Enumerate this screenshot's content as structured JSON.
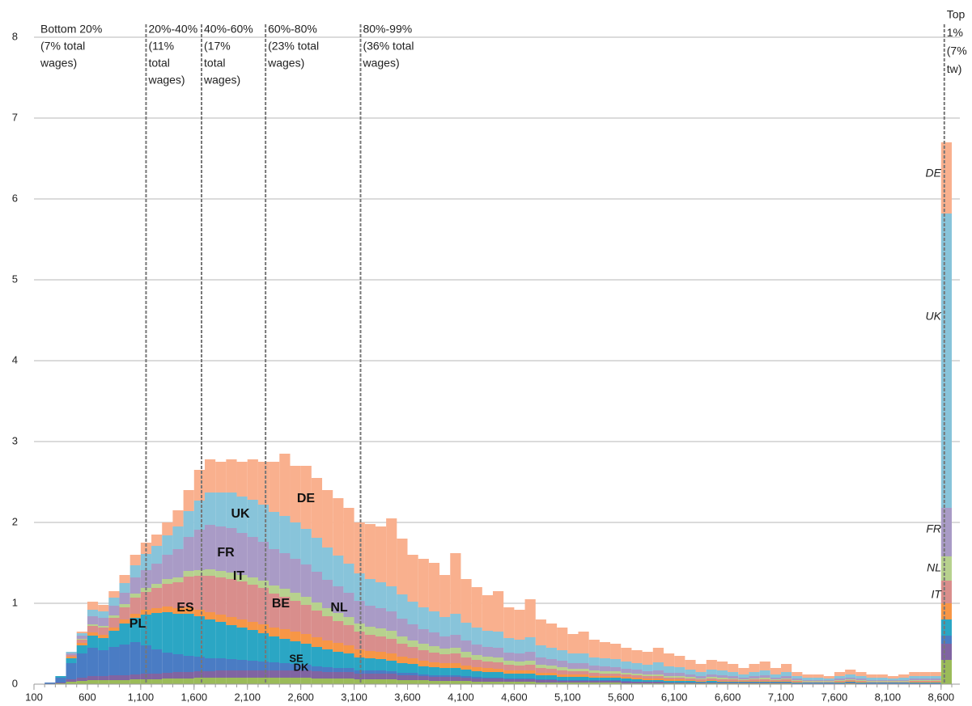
{
  "chart_data": {
    "type": "stacked_histogram",
    "bins": [
      100,
      200,
      300,
      400,
      500,
      600,
      700,
      800,
      900,
      1000,
      1100,
      1200,
      1300,
      1400,
      1500,
      1600,
      1700,
      1800,
      1900,
      2000,
      2100,
      2200,
      2300,
      2400,
      2500,
      2600,
      2700,
      2800,
      2900,
      3000,
      3100,
      3200,
      3300,
      3400,
      3500,
      3600,
      3700,
      3800,
      3900,
      4000,
      4100,
      4200,
      4300,
      4400,
      4500,
      4600,
      4700,
      4800,
      4900,
      5000,
      5100,
      5200,
      5300,
      5400,
      5500,
      5600,
      5700,
      5800,
      5900,
      6000,
      6100,
      6200,
      6300,
      6400,
      6500,
      6600,
      6700,
      6800,
      6900,
      7000,
      7100,
      7200,
      7300,
      7400,
      7500,
      7600,
      7700,
      7800,
      7900,
      8000,
      8100,
      8200,
      8300,
      8400,
      8500,
      8600,
      8700
    ],
    "series": [
      {
        "name": "DK",
        "color": "#9bbb59",
        "values": [
          0,
          0,
          0.01,
          0.03,
          0.04,
          0.05,
          0.05,
          0.05,
          0.05,
          0.06,
          0.06,
          0.06,
          0.07,
          0.07,
          0.07,
          0.08,
          0.08,
          0.08,
          0.08,
          0.08,
          0.08,
          0.08,
          0.08,
          0.08,
          0.08,
          0.08,
          0.07,
          0.07,
          0.07,
          0.07,
          0.06,
          0.06,
          0.06,
          0.06,
          0.05,
          0.05,
          0.05,
          0.04,
          0.04,
          0.04,
          0.04,
          0.03,
          0.03,
          0.03,
          0.03,
          0.03,
          0.03,
          0.02,
          0.02,
          0.02,
          0.02,
          0.02,
          0.02,
          0.02,
          0.02,
          0.01,
          0.01,
          0.01,
          0.01,
          0.01,
          0.01,
          0.01,
          0.01,
          0.01,
          0.01,
          0.01,
          0.01,
          0.01,
          0.01,
          0.01,
          0.01,
          0,
          0,
          0,
          0,
          0,
          0.01,
          0,
          0,
          0,
          0,
          0,
          0,
          0,
          0,
          0.3
        ]
      },
      {
        "name": "SE",
        "color": "#8064a2",
        "values": [
          0,
          0,
          0.01,
          0.03,
          0.04,
          0.05,
          0.05,
          0.06,
          0.06,
          0.06,
          0.07,
          0.07,
          0.07,
          0.08,
          0.08,
          0.08,
          0.08,
          0.09,
          0.09,
          0.09,
          0.09,
          0.09,
          0.09,
          0.09,
          0.09,
          0.09,
          0.09,
          0.08,
          0.08,
          0.08,
          0.07,
          0.07,
          0.07,
          0.07,
          0.06,
          0.06,
          0.05,
          0.05,
          0.05,
          0.05,
          0.04,
          0.04,
          0.04,
          0.04,
          0.03,
          0.03,
          0.03,
          0.03,
          0.03,
          0.02,
          0.02,
          0.02,
          0.02,
          0.02,
          0.02,
          0.02,
          0.02,
          0.02,
          0.02,
          0.01,
          0.01,
          0.01,
          0.01,
          0.01,
          0.01,
          0.01,
          0.01,
          0.01,
          0.01,
          0.01,
          0.01,
          0.01,
          0.01,
          0.01,
          0.01,
          0.01,
          0.01,
          0.01,
          0.01,
          0.01,
          0.01,
          0.01,
          0.01,
          0.01,
          0.01,
          0.2
        ]
      },
      {
        "name": "PL",
        "color": "#4a7cc4",
        "values": [
          0,
          0.02,
          0.06,
          0.2,
          0.3,
          0.35,
          0.32,
          0.35,
          0.38,
          0.4,
          0.35,
          0.3,
          0.25,
          0.22,
          0.2,
          0.18,
          0.16,
          0.15,
          0.14,
          0.13,
          0.12,
          0.11,
          0.1,
          0.09,
          0.08,
          0.07,
          0.06,
          0.06,
          0.05,
          0.05,
          0.04,
          0.04,
          0.04,
          0.03,
          0.03,
          0.03,
          0.02,
          0.02,
          0.02,
          0.02,
          0.02,
          0.02,
          0.01,
          0.01,
          0.01,
          0.01,
          0.01,
          0.01,
          0.01,
          0.01,
          0.01,
          0.01,
          0.01,
          0.01,
          0.01,
          0.01,
          0,
          0,
          0,
          0,
          0,
          0,
          0,
          0,
          0,
          0,
          0,
          0,
          0,
          0,
          0,
          0,
          0,
          0,
          0,
          0,
          0,
          0,
          0,
          0,
          0,
          0,
          0,
          0,
          0,
          0.1
        ]
      },
      {
        "name": "ES",
        "color": "#2ba6c4",
        "values": [
          0,
          0,
          0.02,
          0.06,
          0.1,
          0.15,
          0.15,
          0.2,
          0.26,
          0.3,
          0.38,
          0.45,
          0.5,
          0.5,
          0.52,
          0.5,
          0.48,
          0.45,
          0.42,
          0.4,
          0.38,
          0.35,
          0.32,
          0.3,
          0.28,
          0.26,
          0.24,
          0.22,
          0.2,
          0.18,
          0.16,
          0.15,
          0.14,
          0.13,
          0.12,
          0.11,
          0.1,
          0.1,
          0.09,
          0.09,
          0.08,
          0.07,
          0.07,
          0.07,
          0.06,
          0.06,
          0.06,
          0.05,
          0.05,
          0.04,
          0.04,
          0.04,
          0.03,
          0.03,
          0.03,
          0.03,
          0.03,
          0.02,
          0.02,
          0.02,
          0.02,
          0.02,
          0.01,
          0.02,
          0.01,
          0.01,
          0.01,
          0.01,
          0.01,
          0.01,
          0.01,
          0.01,
          0.01,
          0.01,
          0.01,
          0.01,
          0.01,
          0.01,
          0.01,
          0.01,
          0.01,
          0.01,
          0.01,
          0.01,
          0.01,
          0.2
        ]
      },
      {
        "name": "BE",
        "color": "#f79646",
        "values": [
          0,
          0,
          0,
          0.02,
          0.03,
          0.04,
          0.04,
          0.04,
          0.05,
          0.05,
          0.06,
          0.06,
          0.07,
          0.07,
          0.08,
          0.08,
          0.09,
          0.09,
          0.1,
          0.1,
          0.1,
          0.11,
          0.11,
          0.12,
          0.12,
          0.12,
          0.12,
          0.11,
          0.11,
          0.1,
          0.1,
          0.09,
          0.09,
          0.09,
          0.08,
          0.07,
          0.07,
          0.06,
          0.06,
          0.06,
          0.05,
          0.05,
          0.05,
          0.04,
          0.04,
          0.04,
          0.04,
          0.03,
          0.03,
          0.03,
          0.03,
          0.03,
          0.02,
          0.02,
          0.02,
          0.02,
          0.02,
          0.02,
          0.02,
          0.02,
          0.02,
          0.01,
          0.01,
          0.01,
          0.01,
          0.01,
          0.01,
          0.01,
          0.01,
          0.01,
          0.01,
          0.01,
          0,
          0,
          0,
          0.01,
          0.01,
          0.01,
          0,
          0,
          0,
          0,
          0.01,
          0.01,
          0.01,
          0.2
        ]
      },
      {
        "name": "IT",
        "color": "#d98e8c",
        "values": [
          0,
          0,
          0,
          0.02,
          0.04,
          0.08,
          0.09,
          0.12,
          0.15,
          0.2,
          0.22,
          0.25,
          0.28,
          0.32,
          0.38,
          0.42,
          0.45,
          0.46,
          0.47,
          0.47,
          0.46,
          0.45,
          0.42,
          0.4,
          0.38,
          0.36,
          0.33,
          0.3,
          0.27,
          0.25,
          0.22,
          0.2,
          0.19,
          0.18,
          0.16,
          0.14,
          0.13,
          0.12,
          0.11,
          0.12,
          0.1,
          0.09,
          0.08,
          0.08,
          0.07,
          0.06,
          0.07,
          0.06,
          0.05,
          0.05,
          0.04,
          0.04,
          0.04,
          0.03,
          0.03,
          0.03,
          0.03,
          0.03,
          0.03,
          0.02,
          0.02,
          0.02,
          0.02,
          0.02,
          0.02,
          0.02,
          0.01,
          0.02,
          0.02,
          0.01,
          0.02,
          0.01,
          0.01,
          0.01,
          0.01,
          0.01,
          0.01,
          0.01,
          0.01,
          0.01,
          0.01,
          0.01,
          0.01,
          0.01,
          0.01,
          0.28
        ]
      },
      {
        "name": "NL",
        "color": "#b7d18e",
        "values": [
          0,
          0,
          0,
          0,
          0.01,
          0.02,
          0.02,
          0.03,
          0.04,
          0.05,
          0.05,
          0.05,
          0.06,
          0.06,
          0.07,
          0.07,
          0.08,
          0.08,
          0.08,
          0.08,
          0.09,
          0.09,
          0.1,
          0.1,
          0.1,
          0.1,
          0.1,
          0.1,
          0.1,
          0.1,
          0.1,
          0.1,
          0.1,
          0.1,
          0.09,
          0.08,
          0.08,
          0.08,
          0.07,
          0.07,
          0.07,
          0.06,
          0.06,
          0.06,
          0.05,
          0.05,
          0.05,
          0.04,
          0.04,
          0.04,
          0.03,
          0.03,
          0.03,
          0.03,
          0.03,
          0.02,
          0.02,
          0.02,
          0.02,
          0.02,
          0.02,
          0.02,
          0.01,
          0.02,
          0.02,
          0.01,
          0.01,
          0.01,
          0.02,
          0.01,
          0.01,
          0.01,
          0.01,
          0.01,
          0.01,
          0.01,
          0.01,
          0.01,
          0.01,
          0.01,
          0.01,
          0.01,
          0.01,
          0.01,
          0.01,
          0.3
        ]
      },
      {
        "name": "FR",
        "color": "#a99bc6",
        "values": [
          0,
          0,
          0,
          0.02,
          0.04,
          0.1,
          0.1,
          0.12,
          0.14,
          0.2,
          0.22,
          0.25,
          0.3,
          0.35,
          0.42,
          0.5,
          0.55,
          0.55,
          0.55,
          0.52,
          0.5,
          0.48,
          0.45,
          0.44,
          0.42,
          0.4,
          0.38,
          0.35,
          0.33,
          0.3,
          0.28,
          0.26,
          0.25,
          0.24,
          0.22,
          0.2,
          0.18,
          0.17,
          0.15,
          0.16,
          0.14,
          0.13,
          0.12,
          0.12,
          0.1,
          0.1,
          0.11,
          0.09,
          0.08,
          0.08,
          0.07,
          0.07,
          0.06,
          0.06,
          0.05,
          0.05,
          0.05,
          0.04,
          0.05,
          0.04,
          0.04,
          0.03,
          0.03,
          0.03,
          0.03,
          0.03,
          0.02,
          0.03,
          0.03,
          0.02,
          0.03,
          0.02,
          0.01,
          0.01,
          0.01,
          0.02,
          0.02,
          0.02,
          0.01,
          0.01,
          0.01,
          0.01,
          0.02,
          0.02,
          0.02,
          0.6
        ]
      },
      {
        "name": "UK",
        "color": "#88c4da",
        "values": [
          0,
          0,
          0,
          0.02,
          0.03,
          0.08,
          0.08,
          0.1,
          0.12,
          0.15,
          0.2,
          0.22,
          0.24,
          0.28,
          0.32,
          0.36,
          0.4,
          0.42,
          0.44,
          0.45,
          0.46,
          0.46,
          0.46,
          0.46,
          0.45,
          0.44,
          0.42,
          0.4,
          0.38,
          0.36,
          0.34,
          0.33,
          0.32,
          0.31,
          0.3,
          0.28,
          0.27,
          0.26,
          0.24,
          0.26,
          0.22,
          0.21,
          0.2,
          0.2,
          0.18,
          0.17,
          0.18,
          0.15,
          0.14,
          0.13,
          0.12,
          0.12,
          0.1,
          0.1,
          0.1,
          0.09,
          0.08,
          0.08,
          0.1,
          0.08,
          0.07,
          0.06,
          0.05,
          0.06,
          0.06,
          0.05,
          0.04,
          0.05,
          0.06,
          0.04,
          0.05,
          0.03,
          0.03,
          0.03,
          0.02,
          0.03,
          0.04,
          0.03,
          0.03,
          0.03,
          0.02,
          0.03,
          0.03,
          0.03,
          0.03,
          3.64
        ]
      },
      {
        "name": "DE",
        "color": "#f9b08e",
        "values": [
          0,
          0,
          0,
          0,
          0.02,
          0.1,
          0.08,
          0.08,
          0.1,
          0.13,
          0.14,
          0.14,
          0.16,
          0.2,
          0.26,
          0.38,
          0.41,
          0.38,
          0.41,
          0.43,
          0.5,
          0.53,
          0.62,
          0.77,
          0.7,
          0.78,
          0.74,
          0.71,
          0.71,
          0.69,
          0.63,
          0.68,
          0.69,
          0.84,
          0.69,
          0.58,
          0.6,
          0.6,
          0.52,
          0.75,
          0.54,
          0.5,
          0.44,
          0.5,
          0.38,
          0.37,
          0.47,
          0.32,
          0.3,
          0.28,
          0.24,
          0.27,
          0.22,
          0.2,
          0.19,
          0.17,
          0.16,
          0.16,
          0.18,
          0.16,
          0.14,
          0.12,
          0.1,
          0.12,
          0.11,
          0.1,
          0.08,
          0.1,
          0.11,
          0.08,
          0.1,
          0.05,
          0.04,
          0.04,
          0.03,
          0.05,
          0.06,
          0.05,
          0.04,
          0.04,
          0.03,
          0.04,
          0.05,
          0.05,
          0.05,
          0.88
        ]
      }
    ],
    "xlim": [
      100,
      8700
    ],
    "xticks": [
      100,
      600,
      {
        "value": 1100,
        "label": "1,100"
      },
      {
        "value": 1600,
        "label": "1,600"
      },
      {
        "value": 2100,
        "label": "2,100"
      },
      {
        "value": 2600,
        "label": "2,600"
      },
      {
        "value": 3100,
        "label": "3,100"
      },
      {
        "value": 3600,
        "label": "3,600"
      },
      {
        "value": 4100,
        "label": "4,100"
      },
      {
        "value": 4600,
        "label": "4,600"
      },
      {
        "value": 5100,
        "label": "5,100"
      },
      {
        "value": 5600,
        "label": "5,600"
      },
      {
        "value": 6100,
        "label": "6,100"
      },
      {
        "value": 6600,
        "label": "6,600"
      },
      {
        "value": 7100,
        "label": "7,100"
      },
      {
        "value": 7600,
        "label": "7,600"
      },
      {
        "value": 8100,
        "label": "8,100"
      },
      {
        "value": 8600,
        "label": "8,600"
      }
    ],
    "ylim": [
      0,
      8
    ],
    "yticks": [
      0,
      1,
      2,
      3,
      4,
      5,
      6,
      7,
      8
    ],
    "grid": true,
    "dividers": [
      1150,
      1670,
      2270,
      3160,
      8630
    ],
    "band_labels": [
      [
        "Bottom 20%",
        "(7% total",
        "wages)"
      ],
      [
        "20%-40%",
        "(11%",
        "total",
        "wages)"
      ],
      [
        "40%-60%",
        "(17%",
        "total",
        "wages)"
      ],
      [
        "60%-80%",
        "(23% total",
        "wages)"
      ],
      [
        "80%-99%",
        "(36% total",
        "wages)"
      ],
      [
        "Top",
        "1%",
        "(7%",
        "tw)"
      ]
    ]
  }
}
